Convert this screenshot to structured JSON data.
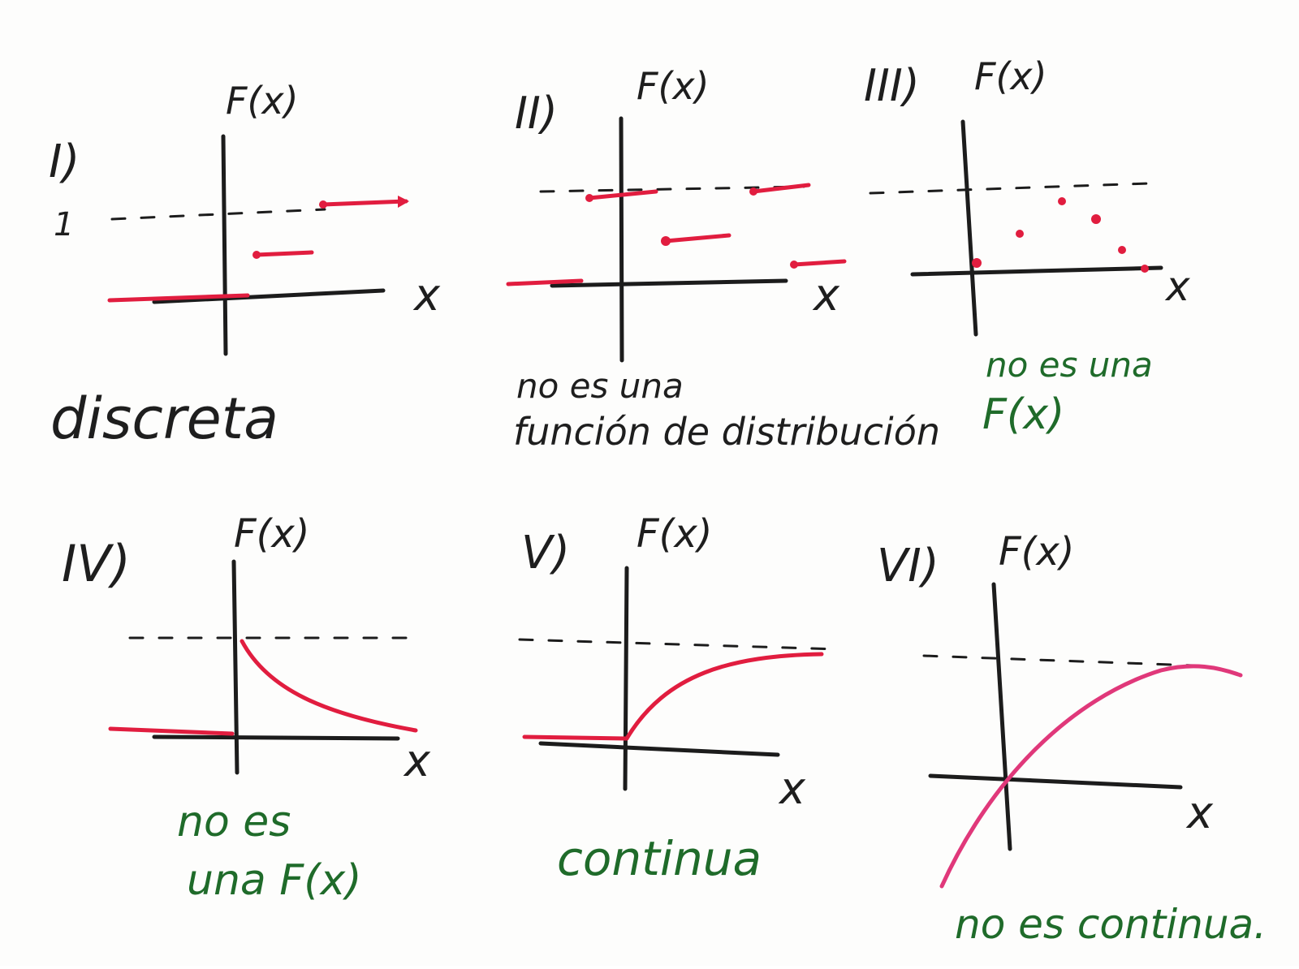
{
  "colors": {
    "marker_black": "#1c1c1c",
    "marker_red": "#e11d3f",
    "marker_green": "#1f6b2a",
    "board": "#fdfdfc"
  },
  "panels": [
    {
      "id": "I",
      "label": "I)",
      "ylabel": "F(x)",
      "xlabel": "x",
      "tick_label": "1",
      "note": "discreta",
      "note_color": "black"
    },
    {
      "id": "II",
      "label": "II)",
      "ylabel": "F(x)",
      "xlabel": "x",
      "note_lines": [
        "no es una",
        "función de distribución"
      ],
      "note_color": "black"
    },
    {
      "id": "III",
      "label": "III)",
      "ylabel": "F(x)",
      "xlabel": "x",
      "note_lines": [
        "no es una",
        "F(x)"
      ],
      "note_color": "green"
    },
    {
      "id": "IV",
      "label": "IV)",
      "ylabel": "F(x)",
      "xlabel": "x",
      "note_lines": [
        "no es",
        "una F(x)"
      ],
      "note_color": "green"
    },
    {
      "id": "V",
      "label": "V)",
      "ylabel": "F(x)",
      "xlabel": "x",
      "note": "continua",
      "note_color": "green"
    },
    {
      "id": "VI",
      "label": "VI)",
      "ylabel": "F(x)",
      "xlabel": "x",
      "note": "no es continua.",
      "note_color": "green"
    }
  ]
}
